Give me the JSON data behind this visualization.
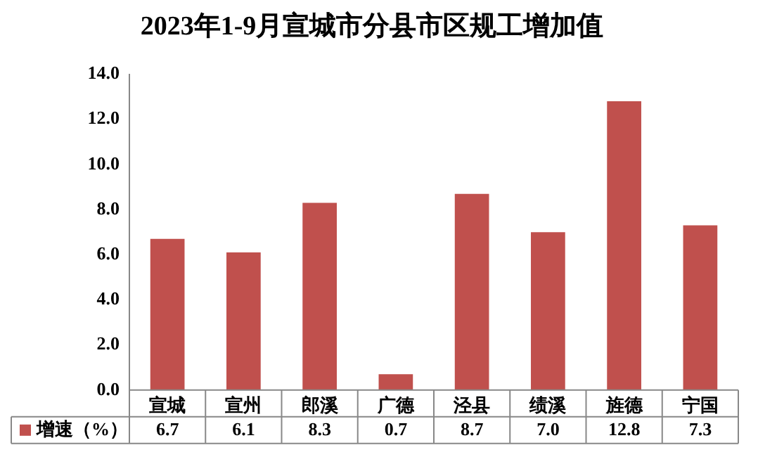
{
  "chart_data": {
    "type": "bar",
    "title": "2023年1-9月宣城市分县市区规工增加值",
    "categories": [
      "宣城",
      "宣州",
      "郎溪",
      "广德",
      "泾县",
      "绩溪",
      "旌德",
      "宁国"
    ],
    "series": [
      {
        "name": "增速（%）",
        "color": "#c0504d",
        "values": [
          6.7,
          6.1,
          8.3,
          0.7,
          8.7,
          7.0,
          12.8,
          7.3
        ],
        "value_labels": [
          "6.7",
          "6.1",
          "8.3",
          "0.7",
          "8.7",
          "7.0",
          "12.8",
          "7.3"
        ]
      }
    ],
    "ylim": [
      0,
      14
    ],
    "yticks": [
      {
        "value": 0,
        "label": "0.0"
      },
      {
        "value": 2,
        "label": "2.0"
      },
      {
        "value": 4,
        "label": "4.0"
      },
      {
        "value": 6,
        "label": "6.0"
      },
      {
        "value": 8,
        "label": "8.0"
      },
      {
        "value": 10,
        "label": "10.0"
      },
      {
        "value": 12,
        "label": "12.0"
      },
      {
        "value": 14,
        "label": "14.0"
      }
    ],
    "grid": false
  }
}
